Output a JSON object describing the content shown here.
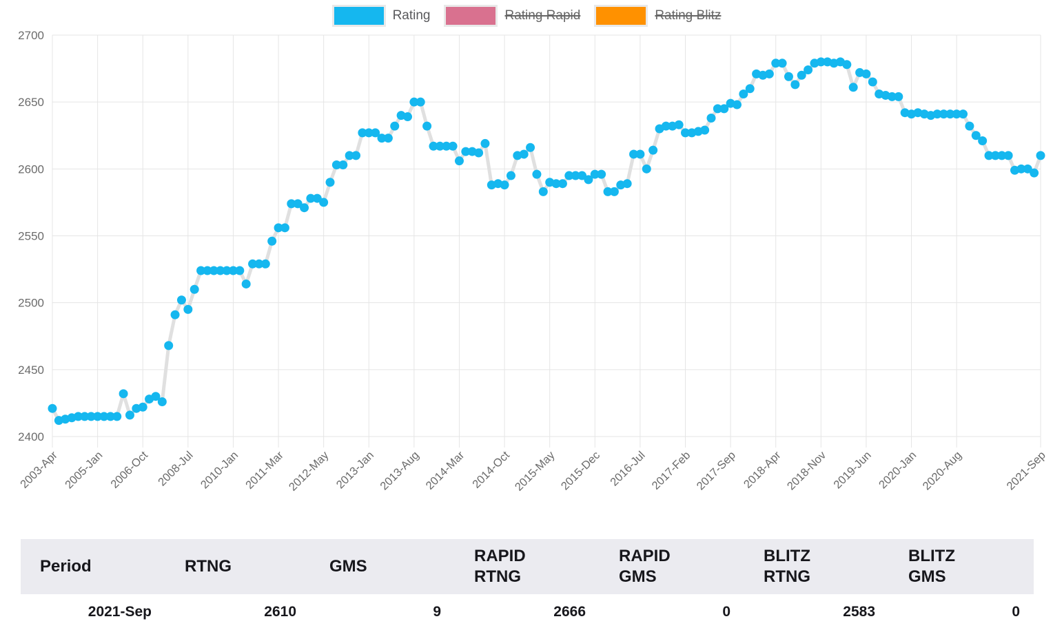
{
  "legend": {
    "items": [
      {
        "label": "Rating",
        "color": "#15b7ef",
        "active": true
      },
      {
        "label": "Rating Rapid",
        "color": "#d9718f",
        "active": false
      },
      {
        "label": "Rating Blitz",
        "color": "#ff9100",
        "active": false
      }
    ]
  },
  "chart_data": {
    "type": "line",
    "title": "",
    "xlabel": "",
    "ylabel": "",
    "ylim": [
      2400,
      2700
    ],
    "y_ticks": [
      2400,
      2450,
      2500,
      2550,
      2600,
      2650,
      2700
    ],
    "grid": true,
    "line_color": "#e0e0e0",
    "grid_color": "#e5e5e5",
    "axis_label_color": "#6b6b6b",
    "legend_position": "top",
    "series": [
      {
        "name": "Rating",
        "color": "#15b7ef",
        "values": [
          2421,
          2412,
          2413,
          2414,
          2415,
          2415,
          2415,
          2415,
          2415,
          2415,
          2415,
          2432,
          2416,
          2421,
          2422,
          2428,
          2430,
          2426,
          2468,
          2491,
          2502,
          2495,
          2510,
          2524,
          2524,
          2524,
          2524,
          2524,
          2524,
          2524,
          2514,
          2529,
          2529,
          2529,
          2546,
          2556,
          2556,
          2574,
          2574,
          2571,
          2578,
          2578,
          2575,
          2590,
          2603,
          2603,
          2610,
          2610,
          2627,
          2627,
          2627,
          2623,
          2623,
          2632,
          2640,
          2639,
          2650,
          2650,
          2632,
          2617,
          2617,
          2617,
          2617,
          2606,
          2613,
          2613,
          2612,
          2619,
          2588,
          2589,
          2588,
          2595,
          2610,
          2611,
          2616,
          2596,
          2583,
          2590,
          2589,
          2589,
          2595,
          2595,
          2595,
          2592,
          2596,
          2596,
          2583,
          2583,
          2588,
          2589,
          2611,
          2611,
          2600,
          2614,
          2630,
          2632,
          2632,
          2633,
          2627,
          2627,
          2628,
          2629,
          2638,
          2645,
          2645,
          2649,
          2648,
          2656,
          2660,
          2671,
          2670,
          2671,
          2679,
          2679,
          2669,
          2663,
          2670,
          2674,
          2679,
          2680,
          2680,
          2679,
          2680,
          2678,
          2661,
          2672,
          2671,
          2665,
          2656,
          2655,
          2654,
          2654,
          2642,
          2641,
          2642,
          2641,
          2640,
          2641,
          2641,
          2641,
          2641,
          2641,
          2632,
          2625,
          2621,
          2610,
          2610,
          2610,
          2610,
          2599,
          2600,
          2600,
          2597,
          2610
        ]
      }
    ],
    "x_tick_labels": [
      {
        "index": 0,
        "label": "2003-Apr"
      },
      {
        "index": 7,
        "label": "2005-Jan"
      },
      {
        "index": 14,
        "label": "2006-Oct"
      },
      {
        "index": 21,
        "label": "2008-Jul"
      },
      {
        "index": 28,
        "label": "2010-Jan"
      },
      {
        "index": 35,
        "label": "2011-Mar"
      },
      {
        "index": 42,
        "label": "2012-May"
      },
      {
        "index": 49,
        "label": "2013-Jan"
      },
      {
        "index": 56,
        "label": "2013-Aug"
      },
      {
        "index": 63,
        "label": "2014-Mar"
      },
      {
        "index": 70,
        "label": "2014-Oct"
      },
      {
        "index": 77,
        "label": "2015-May"
      },
      {
        "index": 84,
        "label": "2015-Dec"
      },
      {
        "index": 91,
        "label": "2016-Jul"
      },
      {
        "index": 98,
        "label": "2017-Feb"
      },
      {
        "index": 105,
        "label": "2017-Sep"
      },
      {
        "index": 112,
        "label": "2018-Apr"
      },
      {
        "index": 119,
        "label": "2018-Nov"
      },
      {
        "index": 126,
        "label": "2019-Jun"
      },
      {
        "index": 133,
        "label": "2020-Jan"
      },
      {
        "index": 140,
        "label": "2020-Aug"
      },
      {
        "index": 153,
        "label": "2021-Sep"
      }
    ]
  },
  "table": {
    "columns": [
      "Period",
      "RTNG",
      "GMS",
      "RAPID\nRTNG",
      "RAPID\nGMS",
      "BLITZ\nRTNG",
      "BLITZ\nGMS"
    ],
    "rows": [
      [
        "2021-Sep",
        "2610",
        "9",
        "2666",
        "0",
        "2583",
        "0"
      ]
    ]
  }
}
